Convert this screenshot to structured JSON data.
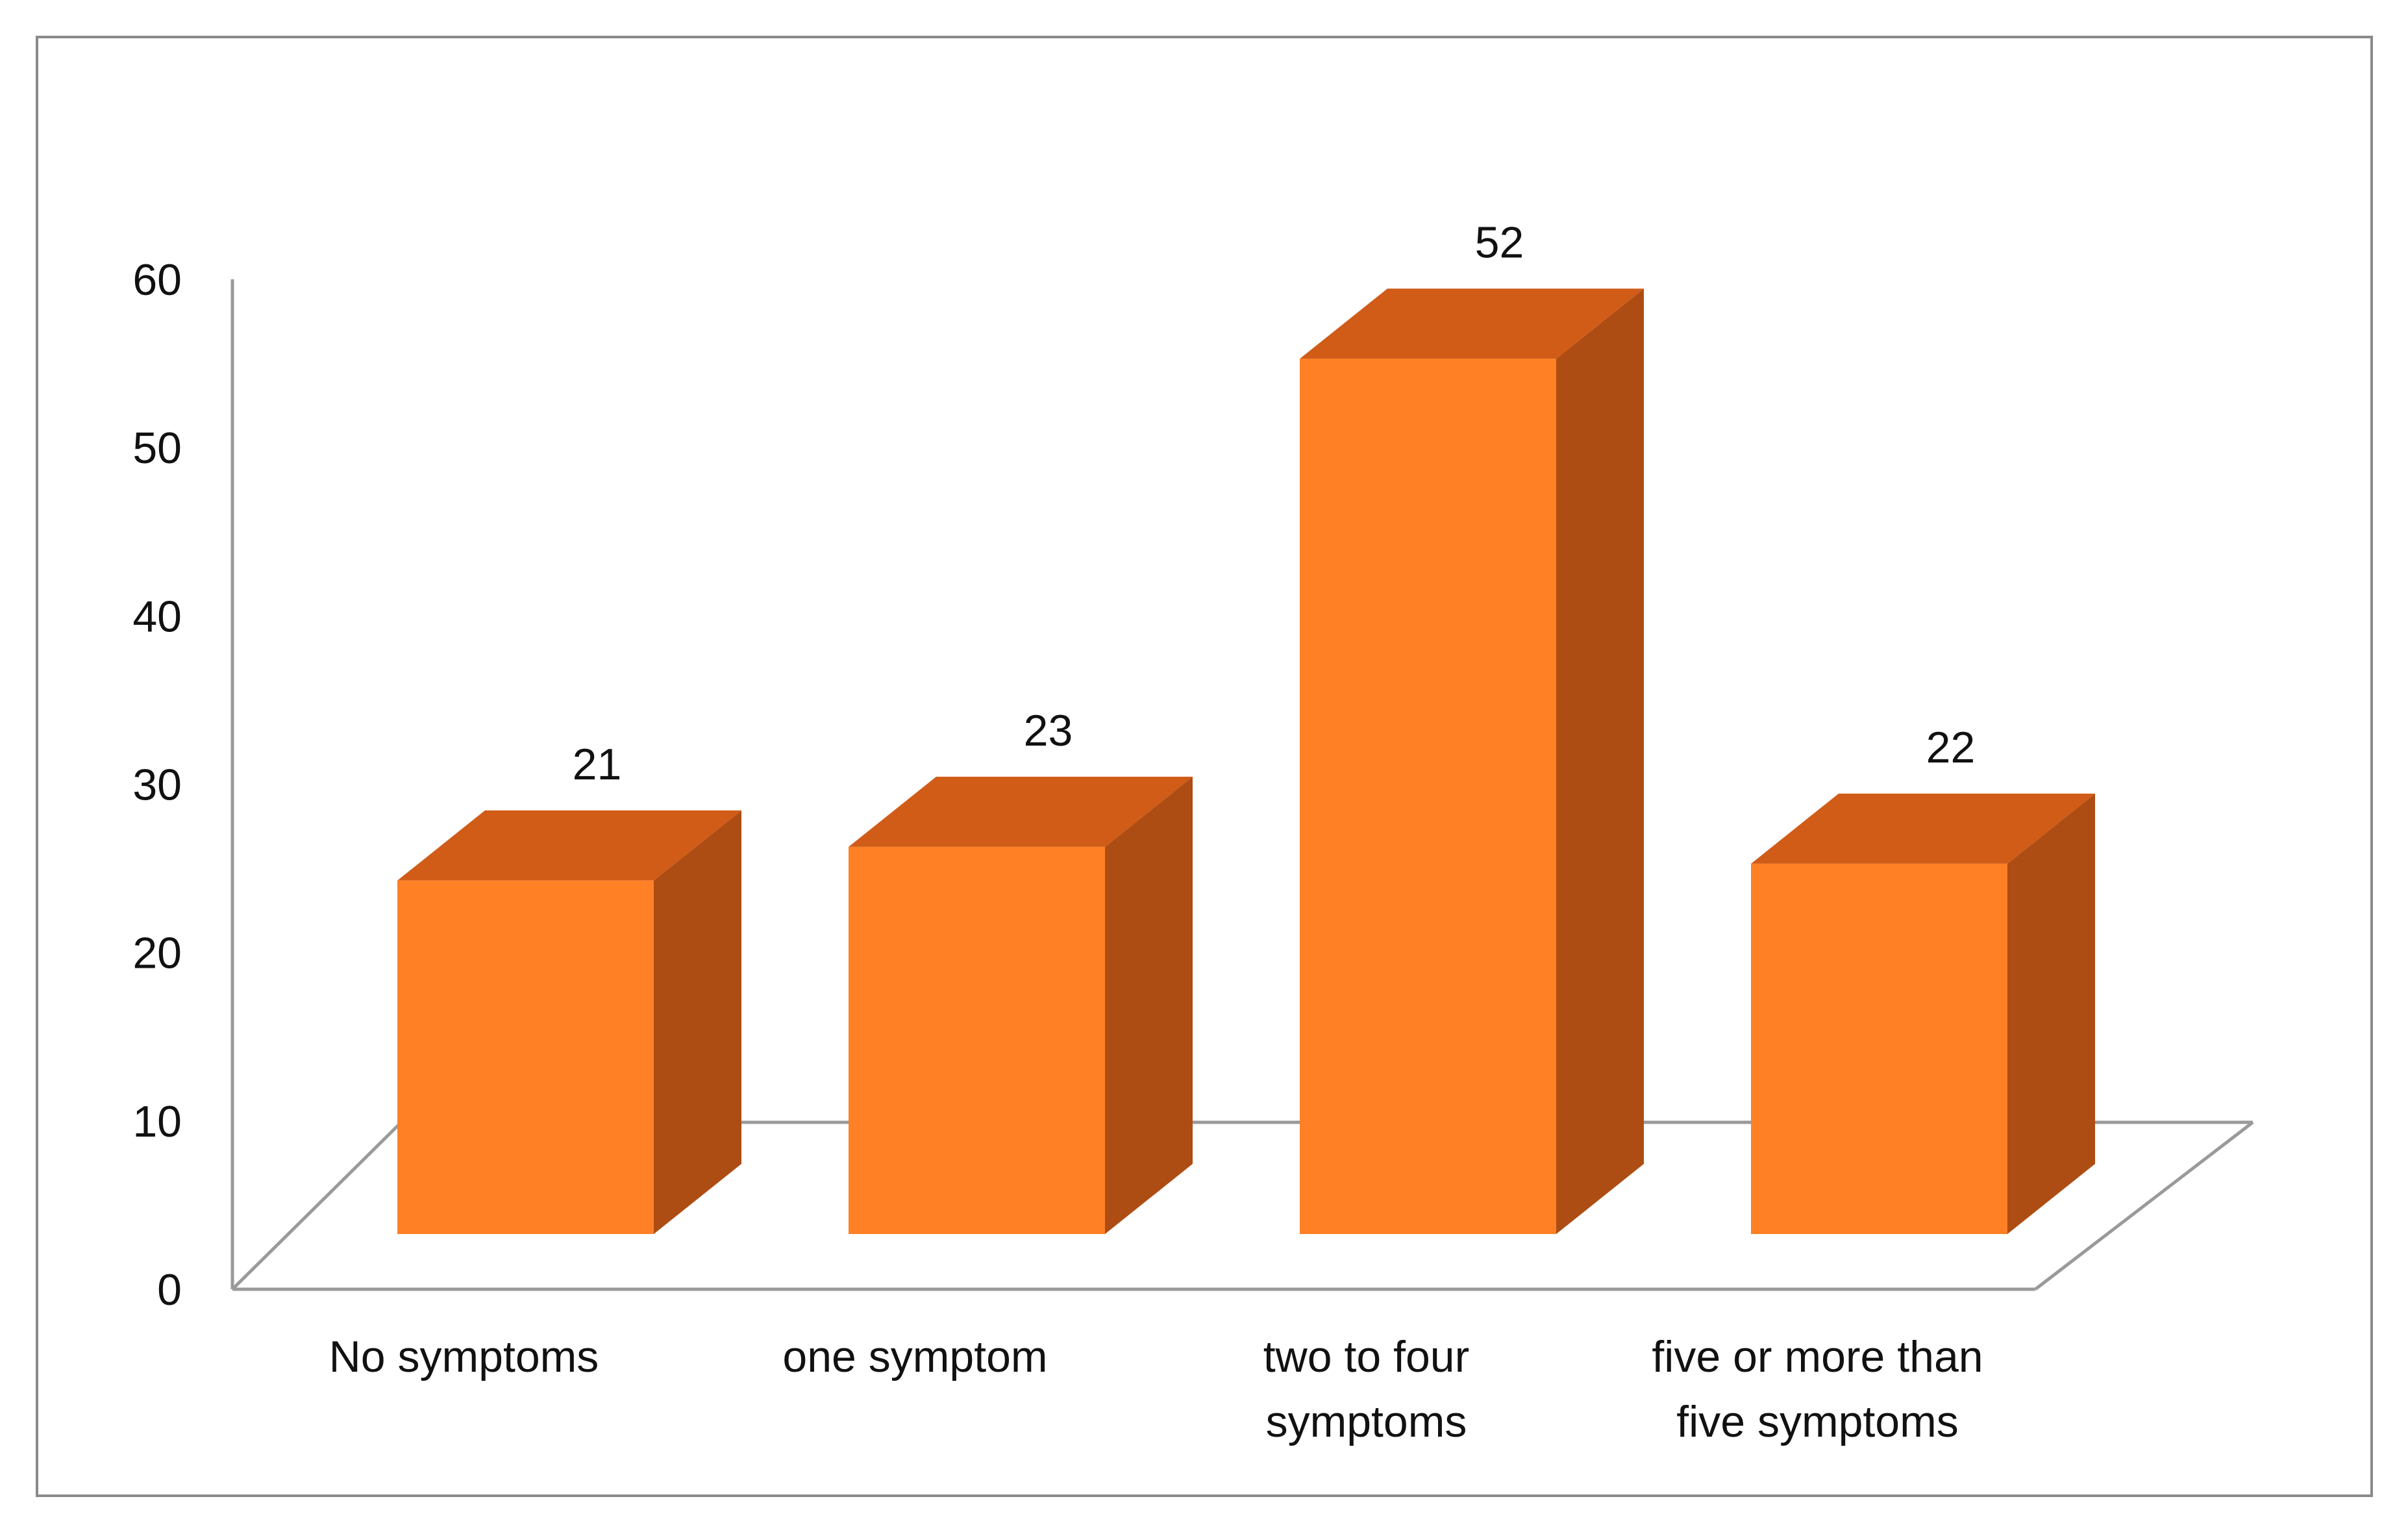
{
  "chart_data": {
    "type": "bar",
    "style": "3d-column",
    "title": "",
    "xlabel": "",
    "ylabel": "",
    "categories": [
      [
        "No symptoms"
      ],
      [
        "one symptom"
      ],
      [
        "two to four",
        "symptoms"
      ],
      [
        "five or more than",
        "five symptoms"
      ]
    ],
    "values": [
      21,
      23,
      52,
      22
    ],
    "ylim": [
      0,
      60
    ],
    "yticks": [
      "0",
      "10",
      "20",
      "30",
      "40",
      "50",
      "60"
    ],
    "grid": false,
    "legend": "none",
    "colors": {
      "front": "#FF8025",
      "top": "#D05C18",
      "side": "#AE4D13",
      "axis": "#9a9a9a"
    }
  }
}
